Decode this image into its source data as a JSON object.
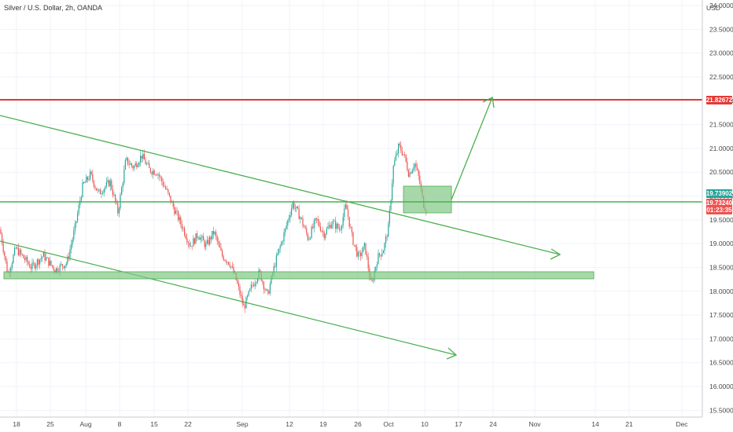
{
  "chart_data": {
    "type": "candlestick",
    "title": "Silver / U.S. Dollar, 2h, OANDA",
    "currency_label": "USD",
    "ylim": [
      15.25,
      24.1
    ],
    "y_ticks": [
      "15.50000",
      "16.00000",
      "16.50000",
      "17.00000",
      "17.50000",
      "18.00000",
      "18.50000",
      "19.00000",
      "19.50000",
      "20.00000",
      "20.50000",
      "21.00000",
      "21.50000",
      "22.00000",
      "22.50000",
      "23.00000",
      "23.50000",
      "24.00000"
    ],
    "x_ticks": [
      "18",
      "25",
      "Aug",
      "8",
      "15",
      "22",
      "Sep",
      "5",
      "12",
      "19",
      "26",
      "Oct",
      "10",
      "17",
      "24",
      "Nov",
      "14",
      "21",
      "Dec"
    ],
    "markers": {
      "resistance": "21.82672",
      "current_green": "19.73902",
      "current_red": "19.73240",
      "countdown": "01:23:35"
    },
    "colors": {
      "up": "#26a69a",
      "down": "#ef5350",
      "drawing": "#4caf50",
      "resistance": "#e53935",
      "zone_fill": "#81c784"
    },
    "price_path": [
      [
        0,
        19.3
      ],
      [
        10,
        18.35
      ],
      [
        20,
        18.9
      ],
      [
        30,
        18.7
      ],
      [
        40,
        18.5
      ],
      [
        55,
        18.75
      ],
      [
        70,
        18.45
      ],
      [
        85,
        18.6
      ],
      [
        95,
        19.3
      ],
      [
        105,
        20.2
      ],
      [
        115,
        20.45
      ],
      [
        125,
        20.05
      ],
      [
        140,
        20.3
      ],
      [
        150,
        19.65
      ],
      [
        160,
        20.75
      ],
      [
        170,
        20.6
      ],
      [
        180,
        20.85
      ],
      [
        190,
        20.55
      ],
      [
        200,
        20.5
      ],
      [
        212,
        20.1
      ],
      [
        222,
        19.7
      ],
      [
        232,
        19.35
      ],
      [
        242,
        18.95
      ],
      [
        252,
        19.2
      ],
      [
        262,
        18.95
      ],
      [
        272,
        19.25
      ],
      [
        282,
        18.75
      ],
      [
        292,
        18.6
      ],
      [
        300,
        18.25
      ],
      [
        310,
        17.65
      ],
      [
        320,
        18.1
      ],
      [
        330,
        18.4
      ],
      [
        340,
        17.9
      ],
      [
        350,
        18.6
      ],
      [
        362,
        19.25
      ],
      [
        372,
        19.85
      ],
      [
        382,
        19.55
      ],
      [
        392,
        19.1
      ],
      [
        402,
        19.5
      ],
      [
        412,
        19.2
      ],
      [
        422,
        19.45
      ],
      [
        432,
        19.3
      ],
      [
        440,
        19.8
      ],
      [
        448,
        19.1
      ],
      [
        456,
        18.7
      ],
      [
        464,
        18.95
      ],
      [
        472,
        18.1
      ],
      [
        480,
        18.7
      ],
      [
        488,
        18.9
      ],
      [
        494,
        19.35
      ],
      [
        500,
        20.6
      ],
      [
        507,
        21.05
      ],
      [
        514,
        20.85
      ],
      [
        520,
        20.45
      ],
      [
        527,
        20.7
      ],
      [
        533,
        20.35
      ],
      [
        538,
        19.85
      ],
      [
        542,
        19.73
      ]
    ]
  }
}
